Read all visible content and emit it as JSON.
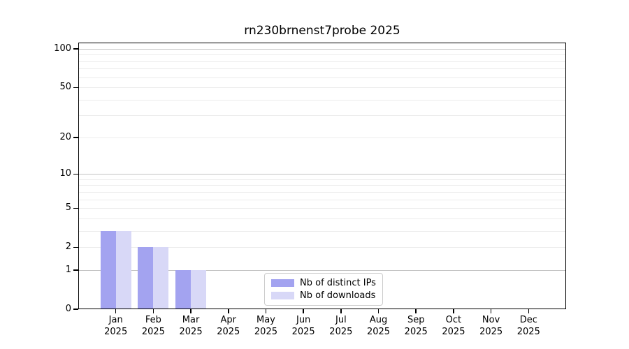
{
  "colors": {
    "distinct_ips": "#a3a3f0",
    "downloads": "#d8d8f7",
    "grid_strong": "#c3c3c3",
    "grid_faint": "#ececec",
    "axis": "#000000",
    "text": "#000000",
    "legend_border": "#cccccc",
    "background": "#ffffff"
  },
  "chart_data": {
    "type": "bar",
    "title": "rn230brnenst7probe 2025",
    "categories": [
      "Jan 2025",
      "Feb 2025",
      "Mar 2025",
      "Apr 2025",
      "May 2025",
      "Jun 2025",
      "Jul 2025",
      "Aug 2025",
      "Sep 2025",
      "Oct 2025",
      "Nov 2025",
      "Dec 2025"
    ],
    "series": [
      {
        "name": "Nb of distinct IPs",
        "color": "#a3a3f0",
        "values": [
          3,
          2,
          1,
          0,
          0,
          0,
          0,
          0,
          0,
          0,
          0,
          0
        ]
      },
      {
        "name": "Nb of downloads",
        "color": "#d8d8f7",
        "values": [
          3,
          2,
          1,
          0,
          0,
          0,
          0,
          0,
          0,
          0,
          0,
          0
        ]
      }
    ],
    "xlabel": "",
    "ylabel": "",
    "yscale": "symlog-log1p",
    "ylim": [
      0,
      112
    ],
    "y_ticks_labeled": [
      0,
      1,
      2,
      5,
      10,
      20,
      50,
      100
    ],
    "y_gridlines_strong": [
      1,
      10,
      100
    ],
    "y_gridlines_faint": [
      2,
      3,
      4,
      5,
      6,
      7,
      8,
      9,
      20,
      30,
      40,
      50,
      60,
      70,
      80,
      90
    ],
    "grid": true,
    "legend_position": "lower-center-inside"
  }
}
